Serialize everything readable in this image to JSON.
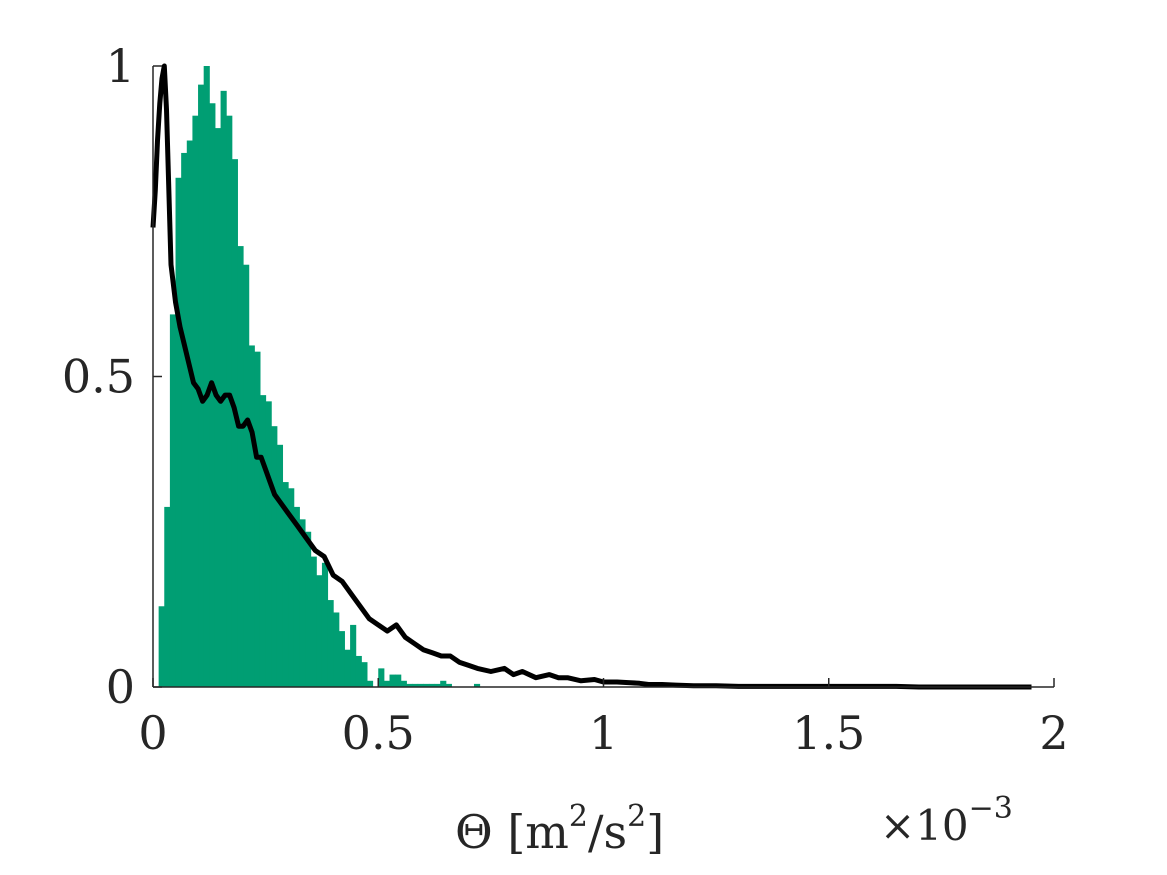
{
  "chart_data": {
    "type": "bar",
    "title": "",
    "xlabel": "Θ [m²/s²]",
    "xlabel_parts": {
      "symbol": "Θ [m",
      "exp1": "2",
      "middle": "/s",
      "exp2": "2",
      "close": "]"
    },
    "x_multiplier": {
      "base": "×10",
      "exponent": "−3"
    },
    "ylabel": "",
    "xlim": [
      0,
      2
    ],
    "ylim": [
      0,
      1
    ],
    "x_ticks": [
      0,
      0.5,
      1,
      1.5,
      2
    ],
    "x_tick_labels": [
      "0",
      "0.5",
      "1",
      "1.5",
      "2"
    ],
    "y_ticks": [
      0,
      0.5,
      1
    ],
    "y_tick_labels": [
      "0",
      "0.5",
      "1"
    ],
    "grid": false,
    "histogram": {
      "color": "#009e73",
      "bin_width": 0.0125,
      "bin_start": 0.0,
      "values": [
        0,
        0.13,
        0.29,
        0.6,
        0.82,
        0.86,
        0.88,
        0.92,
        0.97,
        1.0,
        0.94,
        0.9,
        0.96,
        0.92,
        0.85,
        0.71,
        0.68,
        0.55,
        0.54,
        0.47,
        0.46,
        0.42,
        0.39,
        0.33,
        0.32,
        0.29,
        0.27,
        0.25,
        0.21,
        0.18,
        0.2,
        0.14,
        0.12,
        0.09,
        0.06,
        0.1,
        0.05,
        0.04,
        0.01,
        0.0,
        0.03,
        0.01,
        0.02,
        0.02,
        0.01,
        0.005,
        0.005,
        0.005,
        0.005,
        0.005,
        0.005,
        0.01,
        0.005,
        0,
        0,
        0,
        0,
        0.005
      ]
    },
    "series": [
      {
        "type": "line",
        "color": "#000000",
        "x": [
          0.0,
          0.005,
          0.01,
          0.015,
          0.02,
          0.025,
          0.03,
          0.04,
          0.05,
          0.06,
          0.07,
          0.08,
          0.09,
          0.1,
          0.11,
          0.12,
          0.13,
          0.14,
          0.15,
          0.16,
          0.17,
          0.18,
          0.19,
          0.2,
          0.21,
          0.22,
          0.23,
          0.24,
          0.25,
          0.26,
          0.27,
          0.28,
          0.3,
          0.32,
          0.34,
          0.36,
          0.38,
          0.4,
          0.42,
          0.44,
          0.46,
          0.48,
          0.5,
          0.52,
          0.54,
          0.56,
          0.58,
          0.6,
          0.62,
          0.64,
          0.66,
          0.68,
          0.7,
          0.72,
          0.75,
          0.78,
          0.8,
          0.82,
          0.85,
          0.88,
          0.9,
          0.92,
          0.95,
          0.98,
          1.0,
          1.03,
          1.06,
          1.08,
          1.1,
          1.13,
          1.16,
          1.2,
          1.25,
          1.3,
          1.35,
          1.4,
          1.45,
          1.5,
          1.55,
          1.6,
          1.65,
          1.7,
          1.75,
          1.8,
          1.85,
          1.9,
          1.95
        ],
        "y": [
          0.74,
          0.8,
          0.88,
          0.94,
          0.98,
          1.0,
          0.93,
          0.68,
          0.62,
          0.58,
          0.55,
          0.52,
          0.49,
          0.48,
          0.46,
          0.47,
          0.49,
          0.47,
          0.46,
          0.47,
          0.47,
          0.45,
          0.42,
          0.42,
          0.43,
          0.41,
          0.37,
          0.37,
          0.35,
          0.33,
          0.31,
          0.3,
          0.28,
          0.26,
          0.24,
          0.22,
          0.21,
          0.18,
          0.17,
          0.15,
          0.13,
          0.11,
          0.1,
          0.09,
          0.1,
          0.08,
          0.07,
          0.06,
          0.055,
          0.05,
          0.05,
          0.04,
          0.035,
          0.03,
          0.025,
          0.03,
          0.02,
          0.025,
          0.015,
          0.02,
          0.015,
          0.015,
          0.01,
          0.012,
          0.008,
          0.008,
          0.007,
          0.006,
          0.004,
          0.004,
          0.003,
          0.002,
          0.002,
          0.001,
          0.001,
          0.001,
          0.001,
          0.001,
          0.001,
          0.001,
          0.001,
          0.0,
          0.0,
          0.0,
          0.0,
          0.0,
          0.0
        ]
      }
    ]
  }
}
